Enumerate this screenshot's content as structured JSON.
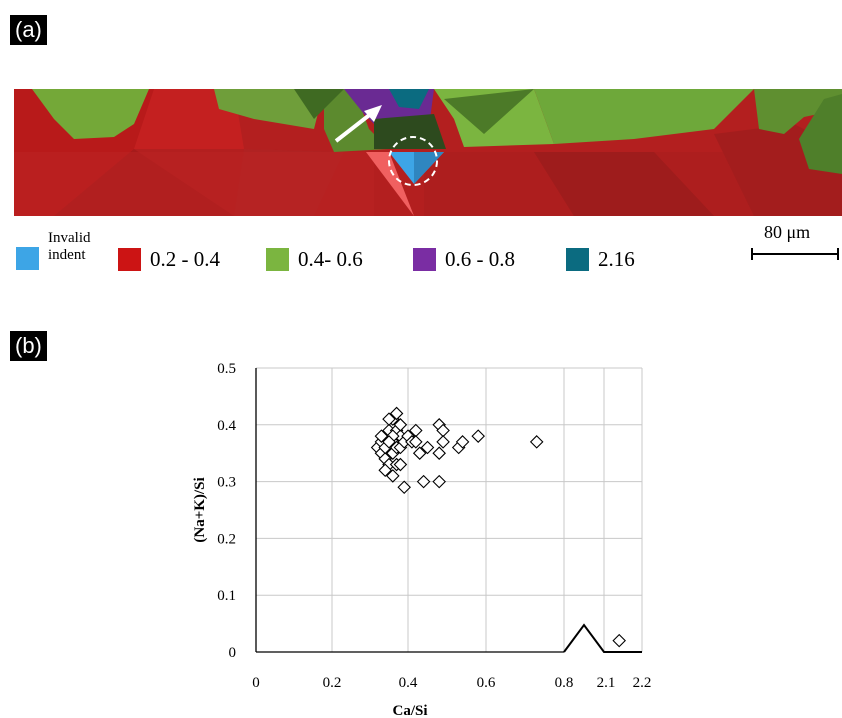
{
  "panel_a": {
    "label": "(a)",
    "legend": [
      {
        "id": "invalid",
        "text": "Invalid indent",
        "color": "#3da5e6"
      },
      {
        "id": "r1",
        "text": "0.2 - 0.4",
        "color": "#cc1414"
      },
      {
        "id": "r2",
        "text": "0.4- 0.6",
        "color": "#7bb540"
      },
      {
        "id": "r3",
        "text": "0.6 - 0.8",
        "color": "#7a2da3"
      },
      {
        "id": "r4",
        "text": "2.16",
        "color": "#0b6b80"
      }
    ],
    "scale_bar": "80 μm"
  },
  "panel_b": {
    "label": "(b)"
  },
  "chart_data": {
    "type": "scatter",
    "xlabel": "Ca/Si",
    "ylabel": "(Na+K)/Si",
    "x_ticks": [
      "0",
      "0.2",
      "0.4",
      "0.6",
      "0.8",
      "2.1",
      "2.2"
    ],
    "y_ticks": [
      "0",
      "0.1",
      "0.2",
      "0.3",
      "0.4",
      "0.5"
    ],
    "ylim": [
      0,
      0.5
    ],
    "axis_break": {
      "between": [
        0.8,
        2.1
      ]
    },
    "grid": true,
    "marker": "diamond",
    "points": [
      [
        0.32,
        0.36
      ],
      [
        0.33,
        0.37
      ],
      [
        0.33,
        0.35
      ],
      [
        0.34,
        0.38
      ],
      [
        0.34,
        0.34
      ],
      [
        0.35,
        0.36
      ],
      [
        0.35,
        0.39
      ],
      [
        0.35,
        0.33
      ],
      [
        0.36,
        0.41
      ],
      [
        0.36,
        0.37
      ],
      [
        0.36,
        0.35
      ],
      [
        0.37,
        0.42
      ],
      [
        0.37,
        0.39
      ],
      [
        0.37,
        0.36
      ],
      [
        0.37,
        0.33
      ],
      [
        0.38,
        0.38
      ],
      [
        0.38,
        0.4
      ],
      [
        0.34,
        0.32
      ],
      [
        0.35,
        0.41
      ],
      [
        0.36,
        0.38
      ],
      [
        0.38,
        0.36
      ],
      [
        0.39,
        0.37
      ],
      [
        0.4,
        0.38
      ],
      [
        0.41,
        0.37
      ],
      [
        0.42,
        0.39
      ],
      [
        0.42,
        0.37
      ],
      [
        0.43,
        0.35
      ],
      [
        0.45,
        0.36
      ],
      [
        0.48,
        0.4
      ],
      [
        0.49,
        0.39
      ],
      [
        0.48,
        0.35
      ],
      [
        0.49,
        0.37
      ],
      [
        0.53,
        0.36
      ],
      [
        0.54,
        0.37
      ],
      [
        0.58,
        0.38
      ],
      [
        0.39,
        0.29
      ],
      [
        0.44,
        0.3
      ],
      [
        0.48,
        0.3
      ],
      [
        0.73,
        0.37
      ],
      [
        2.14,
        0.02
      ],
      [
        0.33,
        0.38
      ],
      [
        0.36,
        0.31
      ],
      [
        0.38,
        0.33
      ],
      [
        0.34,
        0.36
      ],
      [
        0.35,
        0.37
      ]
    ]
  }
}
